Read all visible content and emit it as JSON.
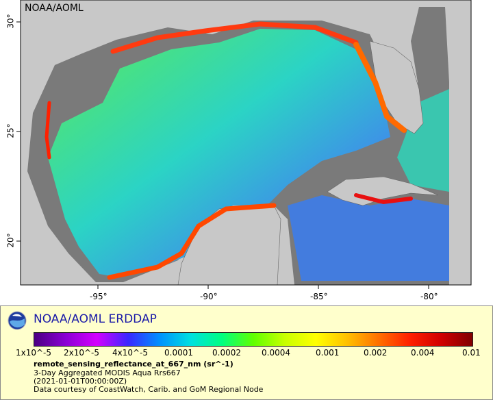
{
  "map": {
    "credit": "NOAA/AOML",
    "lon_ticks": [
      "-95°",
      "-90°",
      "-85°",
      "-80°"
    ],
    "lat_ticks": [
      "30°",
      "25°",
      "20°"
    ],
    "colors": {
      "land": "#c8c8c8",
      "ocean_nodata": "#7a7a7a",
      "frame": "#000000"
    }
  },
  "legend": {
    "title": "NOAA/AOML ERDDAP",
    "colorbar_labels": [
      "1x10^-5",
      "2x10^-5",
      "4x10^-5",
      "0.0001",
      "0.0002",
      "0.0004",
      "0.001",
      "0.002",
      "0.004",
      "0.01"
    ],
    "variable": "remote_sensing_reflectance_at_667_nm (sr^-1)",
    "lines": [
      "3-Day Aggregated MODIS Aqua Rrs667",
      "(2021-01-01T00:00:00Z)",
      "Data courtesy of CoastWatch, Carib. and GoM Regional Node"
    ],
    "colormap": [
      "#4b0082",
      "#8a00d4",
      "#d400ff",
      "#3a28ff",
      "#0090ff",
      "#00e0e0",
      "#00ff80",
      "#60ff00",
      "#c8ff00",
      "#ffff00",
      "#ffc000",
      "#ff7000",
      "#ff2000",
      "#d00000",
      "#800000"
    ]
  }
}
